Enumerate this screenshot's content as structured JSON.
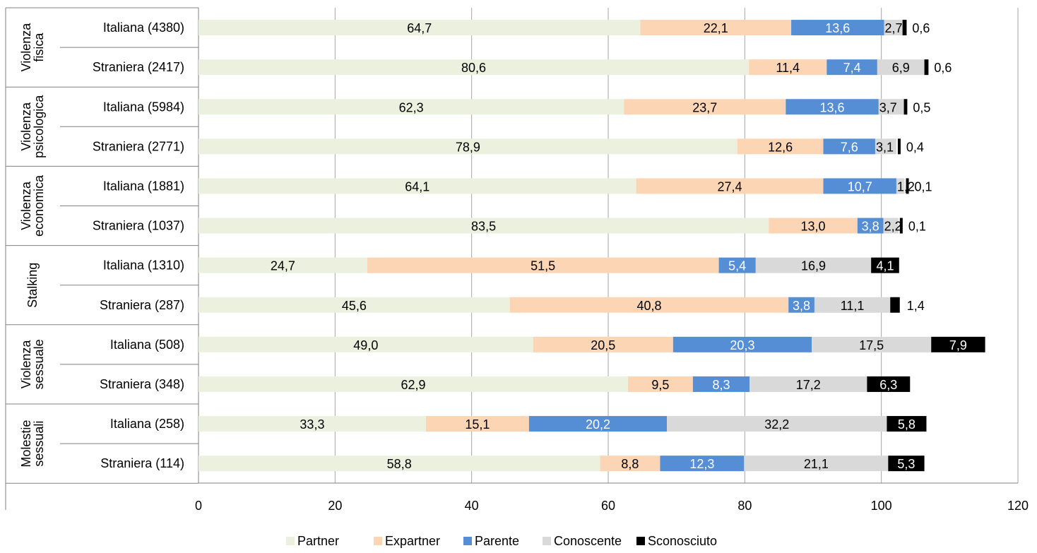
{
  "chart_data": {
    "type": "bar",
    "orientation": "horizontal",
    "stacked": true,
    "groups": [
      {
        "name_lines": [
          "Violenza",
          "fisica"
        ],
        "rows": [
          0,
          1
        ]
      },
      {
        "name_lines": [
          "Violenza",
          "psicologica"
        ],
        "rows": [
          2,
          3
        ]
      },
      {
        "name_lines": [
          "Violenza",
          "economica"
        ],
        "rows": [
          4,
          5
        ]
      },
      {
        "name_lines": [
          "Stalking"
        ],
        "rows": [
          6,
          7
        ]
      },
      {
        "name_lines": [
          "Violenza",
          "sessuale"
        ],
        "rows": [
          8,
          9
        ]
      },
      {
        "name_lines": [
          "Molestie",
          "sessuali"
        ],
        "rows": [
          10,
          11
        ]
      }
    ],
    "categories": [
      "Italiana (4380)",
      "Straniera (2417)",
      "Italiana (5984)",
      "Straniera (2771)",
      "Italiana (1881)",
      "Straniera (1037)",
      "Italiana (1310)",
      "Straniera (287)",
      "Italiana (508)",
      "Straniera (348)",
      "Italiana (258)",
      "Straniera (114)"
    ],
    "series": [
      {
        "name": "Partner",
        "color": "#ebf1de",
        "label_color": "#000000",
        "values": [
          64.7,
          80.6,
          62.3,
          78.9,
          64.1,
          83.5,
          24.7,
          45.6,
          49.0,
          62.9,
          33.3,
          58.8
        ],
        "labels": [
          "64,7",
          "80,6",
          "62,3",
          "78,9",
          "64,1",
          "83,5",
          "24,7",
          "45,6",
          "49,0",
          "62,9",
          "33,3",
          "58,8"
        ]
      },
      {
        "name": "Expartner",
        "color": "#fcd5b5",
        "label_color": "#000000",
        "values": [
          22.1,
          11.4,
          23.7,
          12.6,
          27.4,
          13.0,
          51.5,
          40.8,
          20.5,
          9.5,
          15.1,
          8.8
        ],
        "labels": [
          "22,1",
          "11,4",
          "23,7",
          "12,6",
          "27,4",
          "13,0",
          "51,5",
          "40,8",
          "20,5",
          "9,5",
          "15,1",
          "8,8"
        ]
      },
      {
        "name": "Parente",
        "color": "#558ed5",
        "label_color": "#ffffff",
        "values": [
          13.6,
          7.4,
          13.6,
          7.6,
          10.7,
          3.8,
          5.4,
          3.8,
          20.3,
          8.3,
          20.2,
          12.3
        ],
        "labels": [
          "13,6",
          "7,4",
          "13,6",
          "7,6",
          "10,7",
          "3,8",
          "5,4",
          "3,8",
          "20,3",
          "8,3",
          "20,2",
          "12,3"
        ]
      },
      {
        "name": "Conoscente",
        "color": "#d9d9d9",
        "label_color": "#000000",
        "values": [
          2.7,
          6.9,
          3.7,
          3.1,
          1.2,
          2.2,
          16.9,
          11.1,
          17.5,
          17.2,
          32.2,
          21.1
        ],
        "labels": [
          "2,7",
          "6,9",
          "3,7",
          "3,1",
          "1,2",
          "2,2",
          "16,9",
          "11,1",
          "17,5",
          "17,2",
          "32,2",
          "21,1"
        ]
      },
      {
        "name": "Sconosciuto",
        "color": "#000000",
        "label_color": "#ffffff",
        "values": [
          0.6,
          0.6,
          0.5,
          0.4,
          0.1,
          0.1,
          4.1,
          1.4,
          7.9,
          6.3,
          5.8,
          5.3
        ],
        "labels": [
          "0,6",
          "0,6",
          "0,5",
          "0,4",
          "0,1",
          "0,1",
          "4,1",
          "1,4",
          "7,9",
          "6,3",
          "5,8",
          "5,3"
        ]
      }
    ],
    "xlim": [
      0,
      120
    ],
    "xticks": [
      0,
      20,
      40,
      60,
      80,
      100,
      120
    ],
    "xtick_labels": [
      "0",
      "20",
      "40",
      "60",
      "80",
      "100",
      "120"
    ],
    "grid": "vertical",
    "legend_position": "bottom"
  }
}
